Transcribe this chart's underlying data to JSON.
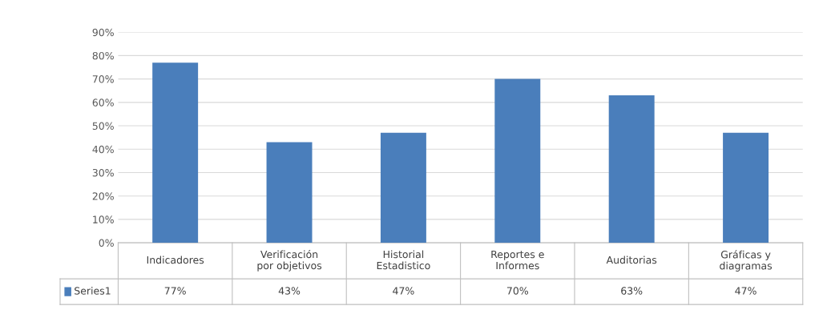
{
  "chart_data": {
    "type": "bar",
    "categories": [
      "Indicadores",
      "Verificación por objetivos",
      "Historial Estadistico",
      "Reportes e Informes",
      "Auditorias",
      "Gráficas y diagramas"
    ],
    "series": [
      {
        "name": "Series1",
        "color": "#4a7ebb",
        "values": [
          77,
          43,
          47,
          70,
          63,
          47
        ]
      }
    ],
    "value_labels": [
      "77%",
      "43%",
      "47%",
      "70%",
      "63%",
      "47%"
    ],
    "ylim": [
      0,
      90
    ],
    "yticks": [
      {
        "value": 0,
        "label": "0%"
      },
      {
        "value": 10,
        "label": "10%"
      },
      {
        "value": 20,
        "label": "20%"
      },
      {
        "value": 30,
        "label": "30%"
      },
      {
        "value": 40,
        "label": "40%"
      },
      {
        "value": 50,
        "label": "50%"
      },
      {
        "value": 60,
        "label": "60%"
      },
      {
        "value": 70,
        "label": "70%"
      },
      {
        "value": 80,
        "label": "80%"
      },
      {
        "value": 90,
        "label": "90%"
      }
    ],
    "grid": "y",
    "legend": "bottom"
  }
}
